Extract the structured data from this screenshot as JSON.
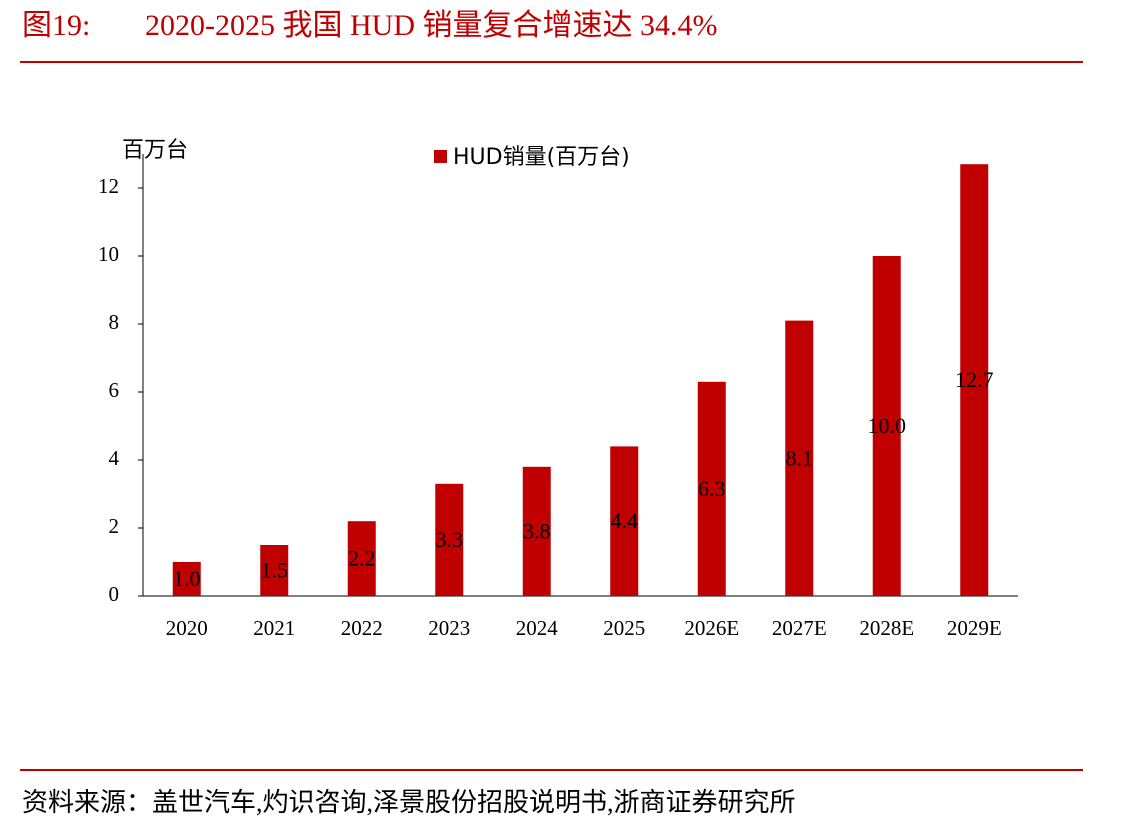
{
  "chart_data": {
    "type": "bar",
    "figure_label": "图19:",
    "title": "2020-2025 我国 HUD 销量复合增速达 34.4%",
    "y_label": "百万台",
    "source": "资料来源：盖世汽车,灼识咨询,泽景股份招股说明书,浙商证券研究所",
    "categories": [
      "2020",
      "2021",
      "2022",
      "2023",
      "2024",
      "2025",
      "2026E",
      "2027E",
      "2028E",
      "2029E"
    ],
    "series": [
      {
        "name": "HUD销量(百万台)",
        "color": "#c00000",
        "values": [
          1.0,
          1.5,
          2.2,
          3.3,
          3.8,
          4.4,
          6.3,
          8.1,
          10.0,
          12.7
        ],
        "value_labels": [
          "1.0",
          "1.5",
          "2.2",
          "3.3",
          "3.8",
          "4.4",
          "6.3",
          "8.1",
          "10.0",
          "12.7"
        ]
      }
    ],
    "ylim": [
      0,
      13
    ],
    "yticks": [
      0,
      2,
      4,
      6,
      8,
      10,
      12
    ],
    "grid": false,
    "legend": "top"
  }
}
